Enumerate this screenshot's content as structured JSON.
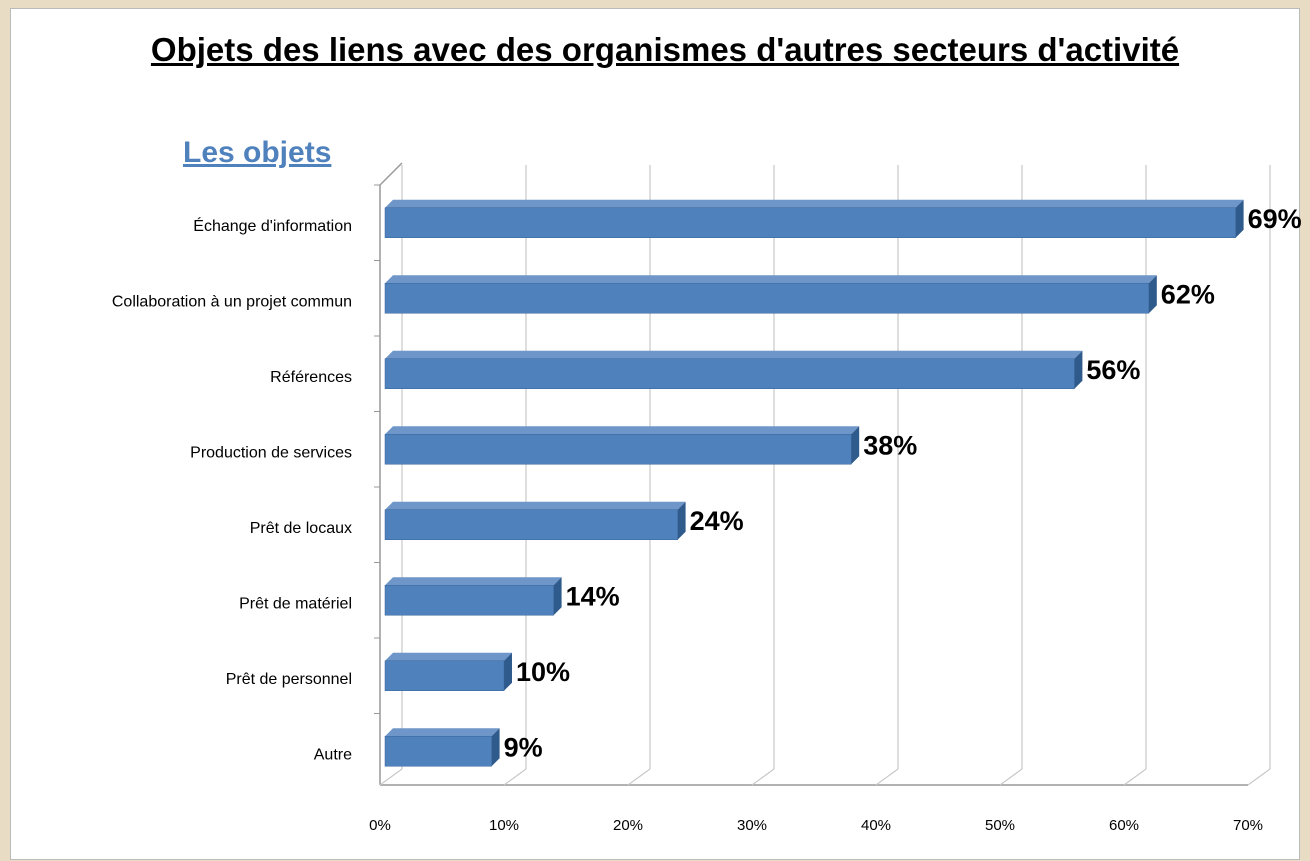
{
  "chart_data": {
    "type": "bar",
    "orientation": "horizontal",
    "title": "Objets des liens avec des organismes d'autres secteurs d'activité",
    "subtitle": "Les objets",
    "categories": [
      "Échange d'information",
      "Collaboration à un projet commun",
      "Références",
      "Production de services",
      "Prêt de locaux",
      "Prêt de matériel",
      "Prêt de personnel",
      "Autre"
    ],
    "values": [
      69,
      62,
      56,
      38,
      24,
      14,
      10,
      9
    ],
    "value_labels": [
      "69%",
      "62%",
      "56%",
      "38%",
      "24%",
      "14%",
      "10%",
      "9%"
    ],
    "color": "#4f81bd",
    "xlim": [
      0,
      70
    ],
    "xticks": [
      {
        "value": 0,
        "label": "0%"
      },
      {
        "value": 10,
        "label": "10%"
      },
      {
        "value": 20,
        "label": "20%"
      },
      {
        "value": 30,
        "label": "30%"
      },
      {
        "value": 40,
        "label": "40%"
      },
      {
        "value": 50,
        "label": "50%"
      },
      {
        "value": 60,
        "label": "60%"
      },
      {
        "value": 70,
        "label": "70%"
      }
    ],
    "grid": true
  }
}
